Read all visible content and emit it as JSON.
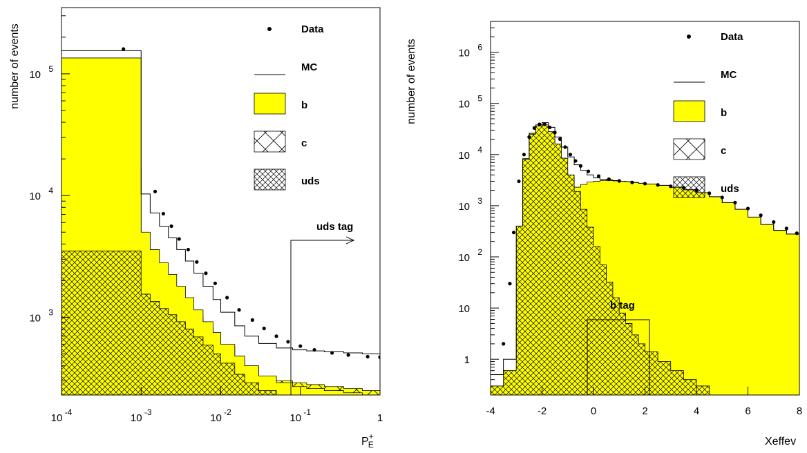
{
  "chart_data": [
    {
      "type": "bar",
      "scale": {
        "x": "log",
        "y": "log"
      },
      "xlim": [
        0.0001,
        1
      ],
      "ylim": [
        230,
        350000
      ],
      "xlabel": "P",
      "xlabel_sup": "+",
      "xlabel_sub": "E",
      "ylabel": "number of events",
      "xticks": [
        {
          "value": 0.0001,
          "base": "10",
          "exp": "-4"
        },
        {
          "value": 0.001,
          "base": "10",
          "exp": "-3"
        },
        {
          "value": 0.01,
          "base": "10",
          "exp": "-2"
        },
        {
          "value": 0.1,
          "base": "10",
          "exp": "-1"
        },
        {
          "value": 1,
          "base": "1",
          "exp": ""
        }
      ],
      "yticks": [
        {
          "value": 1000,
          "base": "10",
          "exp": "3"
        },
        {
          "value": 10000,
          "base": "10",
          "exp": "4"
        },
        {
          "value": 100000,
          "base": "10",
          "exp": "5"
        }
      ],
      "legend": {
        "placement": "top-right",
        "entries": [
          {
            "kind": "dot",
            "label": "Data"
          },
          {
            "kind": "line",
            "label": "MC"
          },
          {
            "kind": "fill",
            "label": "b"
          },
          {
            "kind": "hatch-coarse",
            "label": "c"
          },
          {
            "kind": "hatch-fine",
            "label": "uds"
          }
        ]
      },
      "annotation": {
        "label": "uds tag",
        "x": 0.08
      },
      "bins_x": [
        0.0001,
        0.001,
        0.0013,
        0.0017,
        0.0022,
        0.0028,
        0.0036,
        0.0046,
        0.006,
        0.008,
        0.01,
        0.015,
        0.02,
        0.03,
        0.05,
        0.08,
        0.12,
        0.2,
        0.35,
        0.6,
        1
      ],
      "series": [
        {
          "name": "uds",
          "values": [
            3500,
            1550,
            1350,
            1180,
            1050,
            920,
            800,
            690,
            590,
            500,
            420,
            340,
            290,
            250,
            230,
            230,
            230,
            230,
            230,
            230
          ]
        },
        {
          "name": "c",
          "values": [
            17000,
            3500,
            2600,
            2100,
            1750,
            1450,
            1200,
            1000,
            820,
            690,
            580,
            460,
            390,
            330,
            300,
            290,
            280,
            270,
            260,
            250
          ]
        },
        {
          "name": "b",
          "values": [
            135000,
            5000,
            3600,
            2800,
            2250,
            1800,
            1450,
            1150,
            920,
            750,
            600,
            480,
            400,
            330,
            290,
            270,
            260,
            250,
            240,
            230
          ]
        },
        {
          "name": "MC",
          "values": [
            155000,
            10300,
            7200,
            5600,
            4500,
            3600,
            2900,
            2300,
            1800,
            1400,
            1100,
            850,
            700,
            610,
            560,
            540,
            530,
            520,
            510,
            500
          ]
        }
      ],
      "data_points": [
        {
          "x": 0.0006,
          "y": 160000
        },
        {
          "x": 0.0015,
          "y": 10800
        },
        {
          "x": 0.0019,
          "y": 7100
        },
        {
          "x": 0.0024,
          "y": 5600
        },
        {
          "x": 0.003,
          "y": 4400
        },
        {
          "x": 0.0039,
          "y": 3600
        },
        {
          "x": 0.005,
          "y": 2850
        },
        {
          "x": 0.0065,
          "y": 2300
        },
        {
          "x": 0.0085,
          "y": 1900
        },
        {
          "x": 0.012,
          "y": 1450
        },
        {
          "x": 0.017,
          "y": 1150
        },
        {
          "x": 0.025,
          "y": 950
        },
        {
          "x": 0.035,
          "y": 810
        },
        {
          "x": 0.05,
          "y": 700
        },
        {
          "x": 0.07,
          "y": 630
        },
        {
          "x": 0.1,
          "y": 580
        },
        {
          "x": 0.15,
          "y": 540
        },
        {
          "x": 0.25,
          "y": 510
        },
        {
          "x": 0.4,
          "y": 490
        },
        {
          "x": 0.7,
          "y": 475
        },
        {
          "x": 1.0,
          "y": 470
        }
      ]
    },
    {
      "type": "bar",
      "scale": {
        "x": "linear",
        "y": "log"
      },
      "xlim": [
        -4,
        8
      ],
      "ylim": [
        0.2,
        4000000
      ],
      "xlabel": "Xeffev",
      "ylabel": "number of events",
      "xticks": [
        {
          "value": -4,
          "label": "-4"
        },
        {
          "value": -2,
          "label": "-2"
        },
        {
          "value": 0,
          "label": "0"
        },
        {
          "value": 2,
          "label": "2"
        },
        {
          "value": 4,
          "label": "4"
        },
        {
          "value": 6,
          "label": "6"
        },
        {
          "value": 8,
          "label": "8"
        }
      ],
      "yticks": [
        {
          "value": 1,
          "base": "1",
          "exp": ""
        },
        {
          "value": 10,
          "base": "10",
          "exp": ""
        },
        {
          "value": 100,
          "base": "10",
          "exp": "2"
        },
        {
          "value": 1000,
          "base": "10",
          "exp": "3"
        },
        {
          "value": 10000,
          "base": "10",
          "exp": "4"
        },
        {
          "value": 100000,
          "base": "10",
          "exp": "5"
        },
        {
          "value": 1000000,
          "base": "10",
          "exp": "6"
        }
      ],
      "legend": {
        "placement": "top-right",
        "entries": [
          {
            "kind": "dot",
            "label": "Data"
          },
          {
            "kind": "line",
            "label": "MC"
          },
          {
            "kind": "fill",
            "label": "b"
          },
          {
            "kind": "hatch-coarse",
            "label": "c"
          },
          {
            "kind": "hatch-fine",
            "label": "uds"
          }
        ]
      },
      "annotation": {
        "label": "b tag",
        "x": -0.1
      },
      "bins_x": [
        -4.0,
        -3.5,
        -3.0,
        -2.75,
        -2.5,
        -2.25,
        -2.0,
        -1.75,
        -1.5,
        -1.25,
        -1.0,
        -0.75,
        -0.5,
        -0.25,
        0.0,
        0.25,
        0.5,
        0.75,
        1.0,
        1.25,
        1.5,
        1.75,
        2.0,
        2.5,
        3.0,
        3.5,
        4.0,
        4.5,
        5.0,
        5.5,
        6.0,
        6.5,
        7.0,
        7.5,
        8.0
      ],
      "series": [
        {
          "name": "b",
          "values": [
            0.2,
            0.2,
            0.2,
            6,
            40,
            150,
            350,
            650,
            1000,
            1400,
            1800,
            2300,
            2600,
            2900,
            3000,
            3100,
            3100,
            3050,
            3000,
            2950,
            2850,
            2750,
            2650,
            2500,
            2300,
            2050,
            1800,
            1500,
            1150,
            850,
            600,
            430,
            330,
            280
          ]
        },
        {
          "name": "c",
          "values": [
            0.2,
            0.2,
            8,
            300,
            1300,
            3000,
            4800,
            6000,
            6200,
            5000,
            3500,
            2300,
            1500,
            850,
            480,
            260,
            140,
            80,
            45,
            28,
            18,
            12,
            8,
            5,
            3,
            2,
            1.2,
            0.8,
            0.5,
            0.2,
            0.2,
            0.2,
            0.2,
            0.2
          ]
        },
        {
          "name": "uds",
          "values": [
            0.3,
            0.6,
            400,
            8000,
            25000,
            36000,
            38000,
            28000,
            16000,
            8500,
            4000,
            1900,
            850,
            380,
            160,
            70,
            32,
            16,
            8,
            5,
            3,
            2,
            1.4,
            0.9,
            0.6,
            0.4,
            0.3,
            0.2,
            0.2,
            0.2,
            0.2,
            0.2,
            0.2,
            0.2
          ]
        },
        {
          "name": "MC",
          "values": [
            0.5,
            1.0,
            400,
            8300,
            26000,
            38000,
            42000,
            34000,
            22000,
            14000,
            9000,
            6300,
            4900,
            4000,
            3500,
            3300,
            3200,
            3100,
            3000,
            2950,
            2850,
            2750,
            2650,
            2500,
            2300,
            2050,
            1800,
            1500,
            1150,
            850,
            600,
            430,
            330,
            280
          ]
        }
      ],
      "data_points": [
        {
          "x": -3.5,
          "y": 2
        },
        {
          "x": -3.25,
          "y": 30
        },
        {
          "x": -3.1,
          "y": 300
        },
        {
          "x": -2.9,
          "y": 3000
        },
        {
          "x": -2.7,
          "y": 10000
        },
        {
          "x": -2.5,
          "y": 22000
        },
        {
          "x": -2.3,
          "y": 33000
        },
        {
          "x": -2.1,
          "y": 39000
        },
        {
          "x": -1.9,
          "y": 39000
        },
        {
          "x": -1.7,
          "y": 34000
        },
        {
          "x": -1.5,
          "y": 27000
        },
        {
          "x": -1.3,
          "y": 20000
        },
        {
          "x": -1.1,
          "y": 14000
        },
        {
          "x": -0.9,
          "y": 10000
        },
        {
          "x": -0.7,
          "y": 7500
        },
        {
          "x": -0.5,
          "y": 6000
        },
        {
          "x": -0.2,
          "y": 4700
        },
        {
          "x": 0.2,
          "y": 3800
        },
        {
          "x": 0.6,
          "y": 3300
        },
        {
          "x": 1.0,
          "y": 3050
        },
        {
          "x": 1.5,
          "y": 2850
        },
        {
          "x": 2.0,
          "y": 2700
        },
        {
          "x": 2.5,
          "y": 2550
        },
        {
          "x": 3.0,
          "y": 2400
        },
        {
          "x": 3.5,
          "y": 2250
        },
        {
          "x": 4.0,
          "y": 2000
        },
        {
          "x": 4.5,
          "y": 1750
        },
        {
          "x": 5.0,
          "y": 1450
        },
        {
          "x": 5.5,
          "y": 1150
        },
        {
          "x": 6.0,
          "y": 880
        },
        {
          "x": 6.5,
          "y": 650
        },
        {
          "x": 7.0,
          "y": 480
        },
        {
          "x": 7.5,
          "y": 360
        },
        {
          "x": 7.9,
          "y": 290
        }
      ]
    }
  ]
}
